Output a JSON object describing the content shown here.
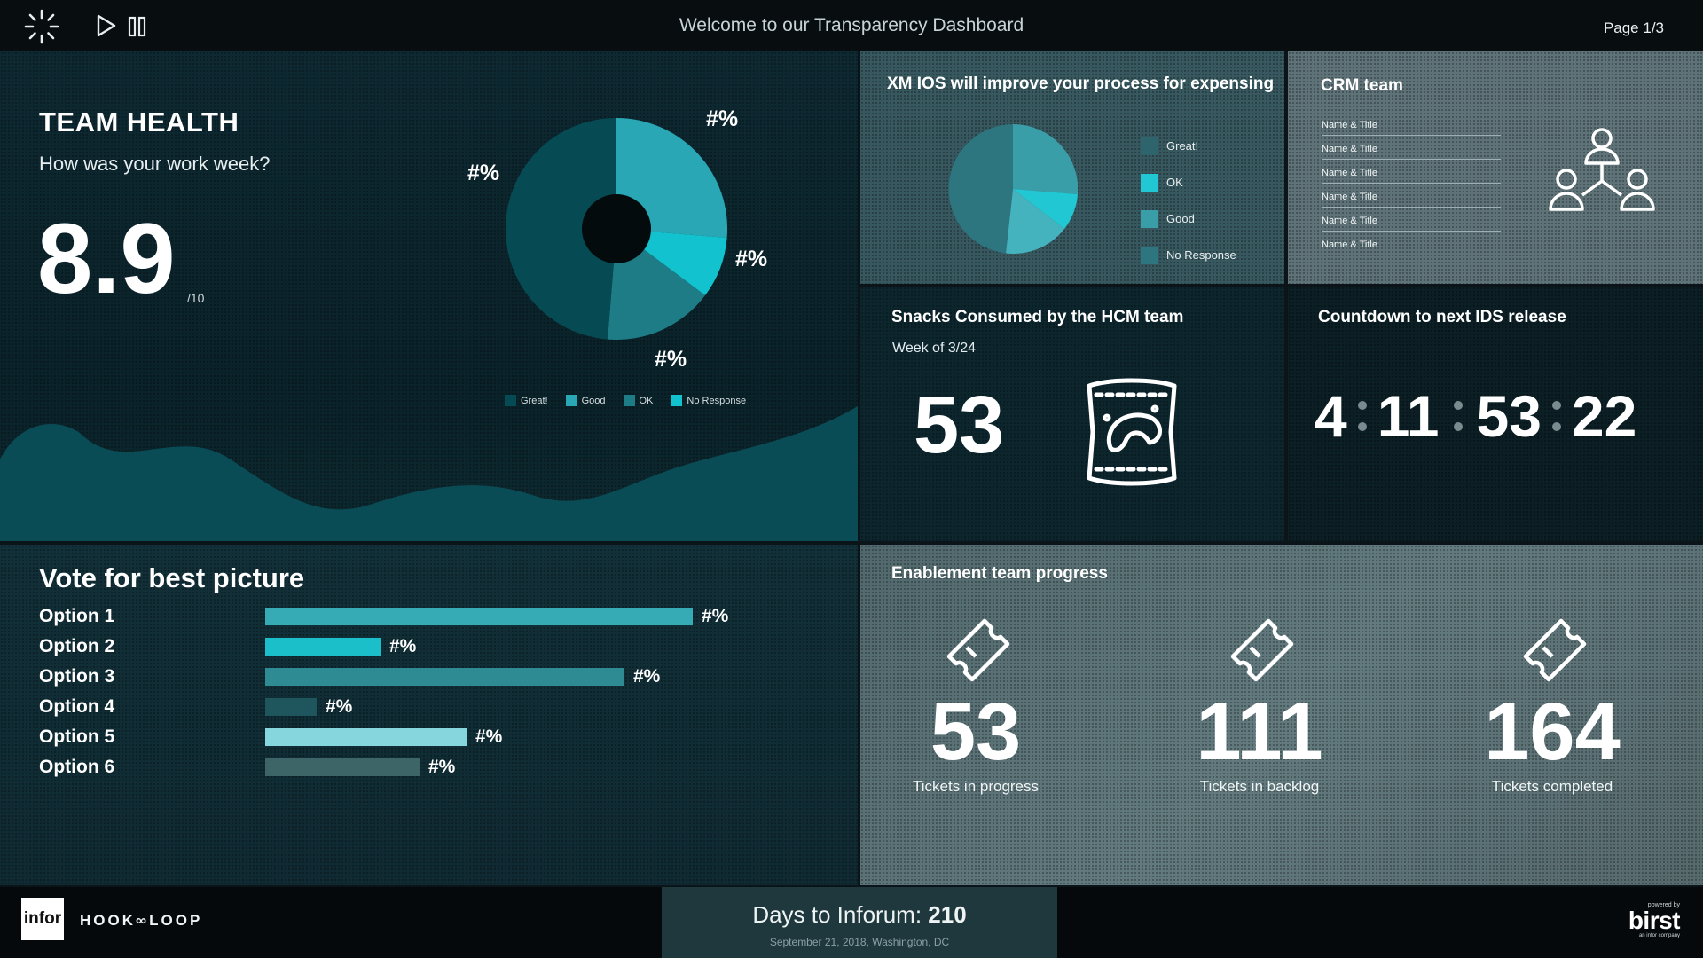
{
  "topbar": {
    "title": "Welcome to our Transparency Dashboard",
    "page": "Page 1/3",
    "icons": [
      "loading-spinner-icon",
      "play-icon",
      "pause-icon"
    ]
  },
  "team_health": {
    "title": "TEAM HEALTH",
    "subtitle": "How was your work week?",
    "score": "8.9",
    "out_of": "/10",
    "pct_labels": [
      "#%",
      "#%",
      "#%",
      "#%"
    ],
    "legend": [
      "Great!",
      "Good",
      "OK",
      "No Response"
    ],
    "colors": {
      "great": "#064b53",
      "good": "#2aa7b5",
      "ok": "#0fc0cc",
      "no_response": "#1d7c86",
      "wave": "#0a4c55"
    }
  },
  "xm": {
    "title": "XM IOS will improve your process for expensing",
    "legend": [
      {
        "label": "Great!",
        "color": "#2e646c"
      },
      {
        "label": "OK",
        "color": "#21c8d3"
      },
      {
        "label": "Good",
        "color": "#3a9ea8"
      },
      {
        "label": "No Response",
        "color": "#2d7680"
      }
    ]
  },
  "crm": {
    "title": "CRM team",
    "rows": [
      "Name & Title",
      "Name & Title",
      "Name & Title",
      "Name & Title",
      "Name & Title",
      "Name & Title"
    ],
    "icon": "org-chart-icon"
  },
  "snacks": {
    "title": "Snacks Consumed by the HCM team",
    "week": "Week of 3/24",
    "count": "53",
    "icon": "snack-bag-icon"
  },
  "countdown": {
    "title": "Countdown to next IDS release",
    "days": "4",
    "hours": "11",
    "minutes": "53",
    "seconds": "22"
  },
  "vote": {
    "title": "Vote for best picture",
    "options": [
      {
        "label": "Option 1",
        "pct": "#%",
        "level": 1.0,
        "color": "#36aab5"
      },
      {
        "label": "Option 2",
        "pct": "#%",
        "level": 0.27,
        "color": "#1bbfca"
      },
      {
        "label": "Option 3",
        "pct": "#%",
        "level": 0.84,
        "color": "#2f8b93"
      },
      {
        "label": "Option 4",
        "pct": "#%",
        "level": 0.12,
        "color": "#1f555d"
      },
      {
        "label": "Option 5",
        "pct": "#%",
        "level": 0.47,
        "color": "#86d6dd"
      },
      {
        "label": "Option 6",
        "pct": "#%",
        "level": 0.36,
        "color": "#3d6568"
      }
    ]
  },
  "enablement": {
    "title": "Enablement team progress",
    "stats": [
      {
        "value": "53",
        "label": "Tickets in progress",
        "icon": "ticket-icon"
      },
      {
        "value": "111",
        "label": "Tickets in backlog",
        "icon": "ticket-icon"
      },
      {
        "value": "164",
        "label": "Tickets completed",
        "icon": "ticket-icon"
      }
    ]
  },
  "footer": {
    "infor": "infor",
    "hookloop": "HOOK∞LOOP",
    "days_label": "Days to Inforum:",
    "days_value": "210",
    "event": "September 21, 2018, Washington, DC",
    "powered_by": "powered by",
    "birst": "birst",
    "infor_company": "an infor company"
  }
}
